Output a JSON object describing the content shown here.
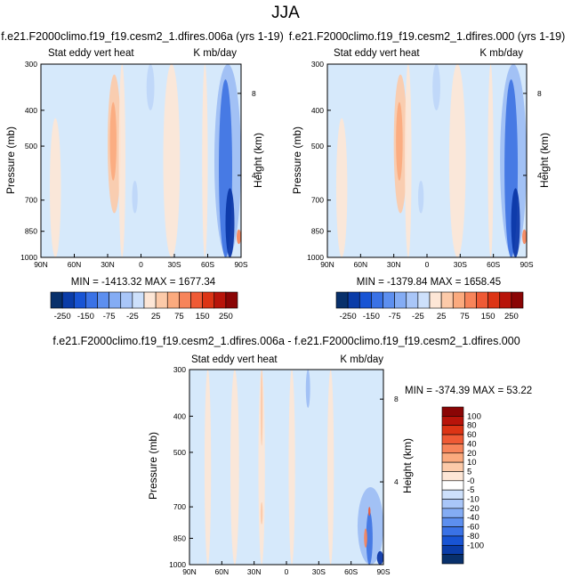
{
  "figure": {
    "title": "JJA"
  },
  "colors": {
    "background_field": "#d6e9fb",
    "frame": "#000000"
  },
  "chart_data": [
    {
      "type": "heatmap",
      "title": "f.e21.F2000climo.f19_f19.cesm2_1.dfires.006a (yrs 1-19)",
      "left_label": "Stat eddy vert heat",
      "right_label": "K mb/day",
      "ylabel": "Pressure (mb)",
      "ylabel_right": "Height (km)",
      "x_ticks": [
        "90N",
        "60N",
        "30N",
        "0",
        "30S",
        "60S",
        "90S"
      ],
      "y_ticks": [
        "300",
        "400",
        "500",
        "700",
        "850",
        "1000"
      ],
      "height_ticks": [
        "8",
        "4"
      ],
      "stats": "MIN = -1413.32  MAX = 1677.34",
      "colorbar": {
        "orientation": "horizontal",
        "labels": [
          "-250",
          "-150",
          "-75",
          "-25",
          "25",
          "75",
          "150",
          "250"
        ],
        "colors": [
          "#08306b",
          "#0a3ca8",
          "#1854d4",
          "#3a72e6",
          "#5d8fef",
          "#84acf4",
          "#a9c6f8",
          "#cde0fb",
          "#fde6d6",
          "#fccaa9",
          "#fbaa7e",
          "#f7845a",
          "#ef5a35",
          "#dc3415",
          "#b8140a",
          "#8a0505"
        ]
      },
      "field": [
        {
          "lat": [
            30,
            18
          ],
          "p": [
            320,
            760
          ],
          "sign": "pos",
          "level": 2
        },
        {
          "lat": [
            28,
            22
          ],
          "p": [
            380,
            620
          ],
          "sign": "pos",
          "level": 3
        },
        {
          "lat": [
            82,
            72
          ],
          "p": [
            420,
            1000
          ],
          "sign": "pos",
          "level": 1
        },
        {
          "lat": [
            20,
            14
          ],
          "p": [
            300,
            1000
          ],
          "sign": "pos",
          "level": 1
        },
        {
          "lat": [
            -20,
            -35
          ],
          "p": [
            300,
            1000
          ],
          "sign": "pos",
          "level": 1
        },
        {
          "lat": [
            -66,
            -90
          ],
          "p": [
            300,
            1000
          ],
          "sign": "neg",
          "level": 2
        },
        {
          "lat": [
            -70,
            -82
          ],
          "p": [
            330,
            1000
          ],
          "sign": "neg",
          "level": 4
        },
        {
          "lat": [
            -76,
            -84
          ],
          "p": [
            650,
            1000
          ],
          "sign": "neg",
          "level": 6
        },
        {
          "lat": [
            -86,
            -90
          ],
          "p": [
            840,
            920
          ],
          "sign": "pos",
          "level": 4
        },
        {
          "lat": [
            -5,
            -12
          ],
          "p": [
            300,
            400
          ],
          "sign": "neg",
          "level": 1
        },
        {
          "lat": [
            8,
            3
          ],
          "p": [
            620,
            760
          ],
          "sign": "neg",
          "level": 1
        },
        {
          "lat": [
            -55,
            -60
          ],
          "p": [
            300,
            1000
          ],
          "sign": "pos",
          "level": 1
        }
      ]
    },
    {
      "type": "heatmap",
      "title": "f.e21.F2000climo.f19_f19.cesm2_1.dfires.000 (yrs 1-19)",
      "left_label": "Stat eddy vert heat",
      "right_label": "K mb/day",
      "ylabel": "Pressure (mb)",
      "ylabel_right": "Height (km)",
      "x_ticks": [
        "90N",
        "60N",
        "30N",
        "0",
        "30S",
        "60S",
        "90S"
      ],
      "y_ticks": [
        "300",
        "400",
        "500",
        "700",
        "850",
        "1000"
      ],
      "height_ticks": [
        "8",
        "4"
      ],
      "stats": "MIN = -1379.84  MAX = 1658.45",
      "colorbar": {
        "orientation": "horizontal",
        "labels": [
          "-250",
          "-150",
          "-75",
          "-25",
          "25",
          "75",
          "150",
          "250"
        ],
        "colors": [
          "#08306b",
          "#0a3ca8",
          "#1854d4",
          "#3a72e6",
          "#5d8fef",
          "#84acf4",
          "#a9c6f8",
          "#cde0fb",
          "#fde6d6",
          "#fccaa9",
          "#fbaa7e",
          "#f7845a",
          "#ef5a35",
          "#dc3415",
          "#b8140a",
          "#8a0505"
        ]
      },
      "field": [
        {
          "lat": [
            30,
            18
          ],
          "p": [
            320,
            760
          ],
          "sign": "pos",
          "level": 2
        },
        {
          "lat": [
            28,
            22
          ],
          "p": [
            380,
            620
          ],
          "sign": "pos",
          "level": 3
        },
        {
          "lat": [
            82,
            72
          ],
          "p": [
            420,
            1000
          ],
          "sign": "pos",
          "level": 1
        },
        {
          "lat": [
            20,
            14
          ],
          "p": [
            300,
            1000
          ],
          "sign": "pos",
          "level": 1
        },
        {
          "lat": [
            -20,
            -35
          ],
          "p": [
            300,
            1000
          ],
          "sign": "pos",
          "level": 1
        },
        {
          "lat": [
            -66,
            -90
          ],
          "p": [
            300,
            1000
          ],
          "sign": "neg",
          "level": 2
        },
        {
          "lat": [
            -70,
            -82
          ],
          "p": [
            330,
            1000
          ],
          "sign": "neg",
          "level": 4
        },
        {
          "lat": [
            -76,
            -84
          ],
          "p": [
            650,
            1000
          ],
          "sign": "neg",
          "level": 6
        },
        {
          "lat": [
            -86,
            -90
          ],
          "p": [
            840,
            920
          ],
          "sign": "pos",
          "level": 4
        },
        {
          "lat": [
            -5,
            -12
          ],
          "p": [
            300,
            400
          ],
          "sign": "neg",
          "level": 1
        },
        {
          "lat": [
            8,
            3
          ],
          "p": [
            620,
            760
          ],
          "sign": "neg",
          "level": 1
        },
        {
          "lat": [
            -55,
            -60
          ],
          "p": [
            300,
            1000
          ],
          "sign": "pos",
          "level": 1
        }
      ]
    },
    {
      "type": "heatmap",
      "title": "f.e21.F2000climo.f19_f19.cesm2_1.dfires.006a - f.e21.F2000climo.f19_f19.cesm2_1.dfires.000",
      "left_label": "Stat eddy vert heat",
      "right_label": "K mb/day",
      "ylabel": "Pressure (mb)",
      "ylabel_right": "Height (km)",
      "x_ticks": [
        "90N",
        "60N",
        "30N",
        "0",
        "30S",
        "60S",
        "90S"
      ],
      "y_ticks": [
        "300",
        "400",
        "500",
        "700",
        "850",
        "1000"
      ],
      "height_ticks": [
        "8",
        "4"
      ],
      "stats": "MIN = -374.39  MAX =  53.22",
      "colorbar": {
        "orientation": "vertical",
        "labels": [
          "100",
          "80",
          "60",
          "40",
          "20",
          "10",
          "5",
          "-0",
          "-5",
          "-10",
          "-20",
          "-40",
          "-60",
          "-80",
          "-100"
        ],
        "colors": [
          "#8a0505",
          "#b8140a",
          "#dc3415",
          "#ef5a35",
          "#f7845a",
          "#fbaa7e",
          "#fccaa9",
          "#fde6d6",
          "#ffffff",
          "#cde0fb",
          "#a9c6f8",
          "#84acf4",
          "#5d8fef",
          "#3a72e6",
          "#1854d4",
          "#0a3ca8",
          "#08306b"
        ]
      },
      "field": [
        {
          "lat": [
            76,
            70
          ],
          "p": [
            300,
            1000
          ],
          "sign": "pos",
          "level": 1
        },
        {
          "lat": [
            52,
            44
          ],
          "p": [
            300,
            1000
          ],
          "sign": "pos",
          "level": 1
        },
        {
          "lat": [
            26,
            20
          ],
          "p": [
            300,
            1000
          ],
          "sign": "pos",
          "level": 1
        },
        {
          "lat": [
            24,
            22
          ],
          "p": [
            300,
            480
          ],
          "sign": "pos",
          "level": 2
        },
        {
          "lat": [
            24,
            22
          ],
          "p": [
            680,
            780
          ],
          "sign": "pos",
          "level": 2
        },
        {
          "lat": [
            -2,
            -8
          ],
          "p": [
            300,
            1000
          ],
          "sign": "pos",
          "level": 1
        },
        {
          "lat": [
            -38,
            -44
          ],
          "p": [
            300,
            1000
          ],
          "sign": "pos",
          "level": 1
        },
        {
          "lat": [
            -18,
            -22
          ],
          "p": [
            300,
            380
          ],
          "sign": "neg",
          "level": 2
        },
        {
          "lat": [
            -66,
            -90
          ],
          "p": [
            620,
            1000
          ],
          "sign": "neg",
          "level": 2
        },
        {
          "lat": [
            -74,
            -80
          ],
          "p": [
            720,
            1000
          ],
          "sign": "neg",
          "level": 4
        },
        {
          "lat": [
            -76,
            -78
          ],
          "p": [
            700,
            740
          ],
          "sign": "pos",
          "level": 5
        },
        {
          "lat": [
            -72,
            -75
          ],
          "p": [
            800,
            900
          ],
          "sign": "pos",
          "level": 4
        },
        {
          "lat": [
            -84,
            -90
          ],
          "p": [
            920,
            1000
          ],
          "sign": "neg",
          "level": 6
        }
      ]
    }
  ]
}
